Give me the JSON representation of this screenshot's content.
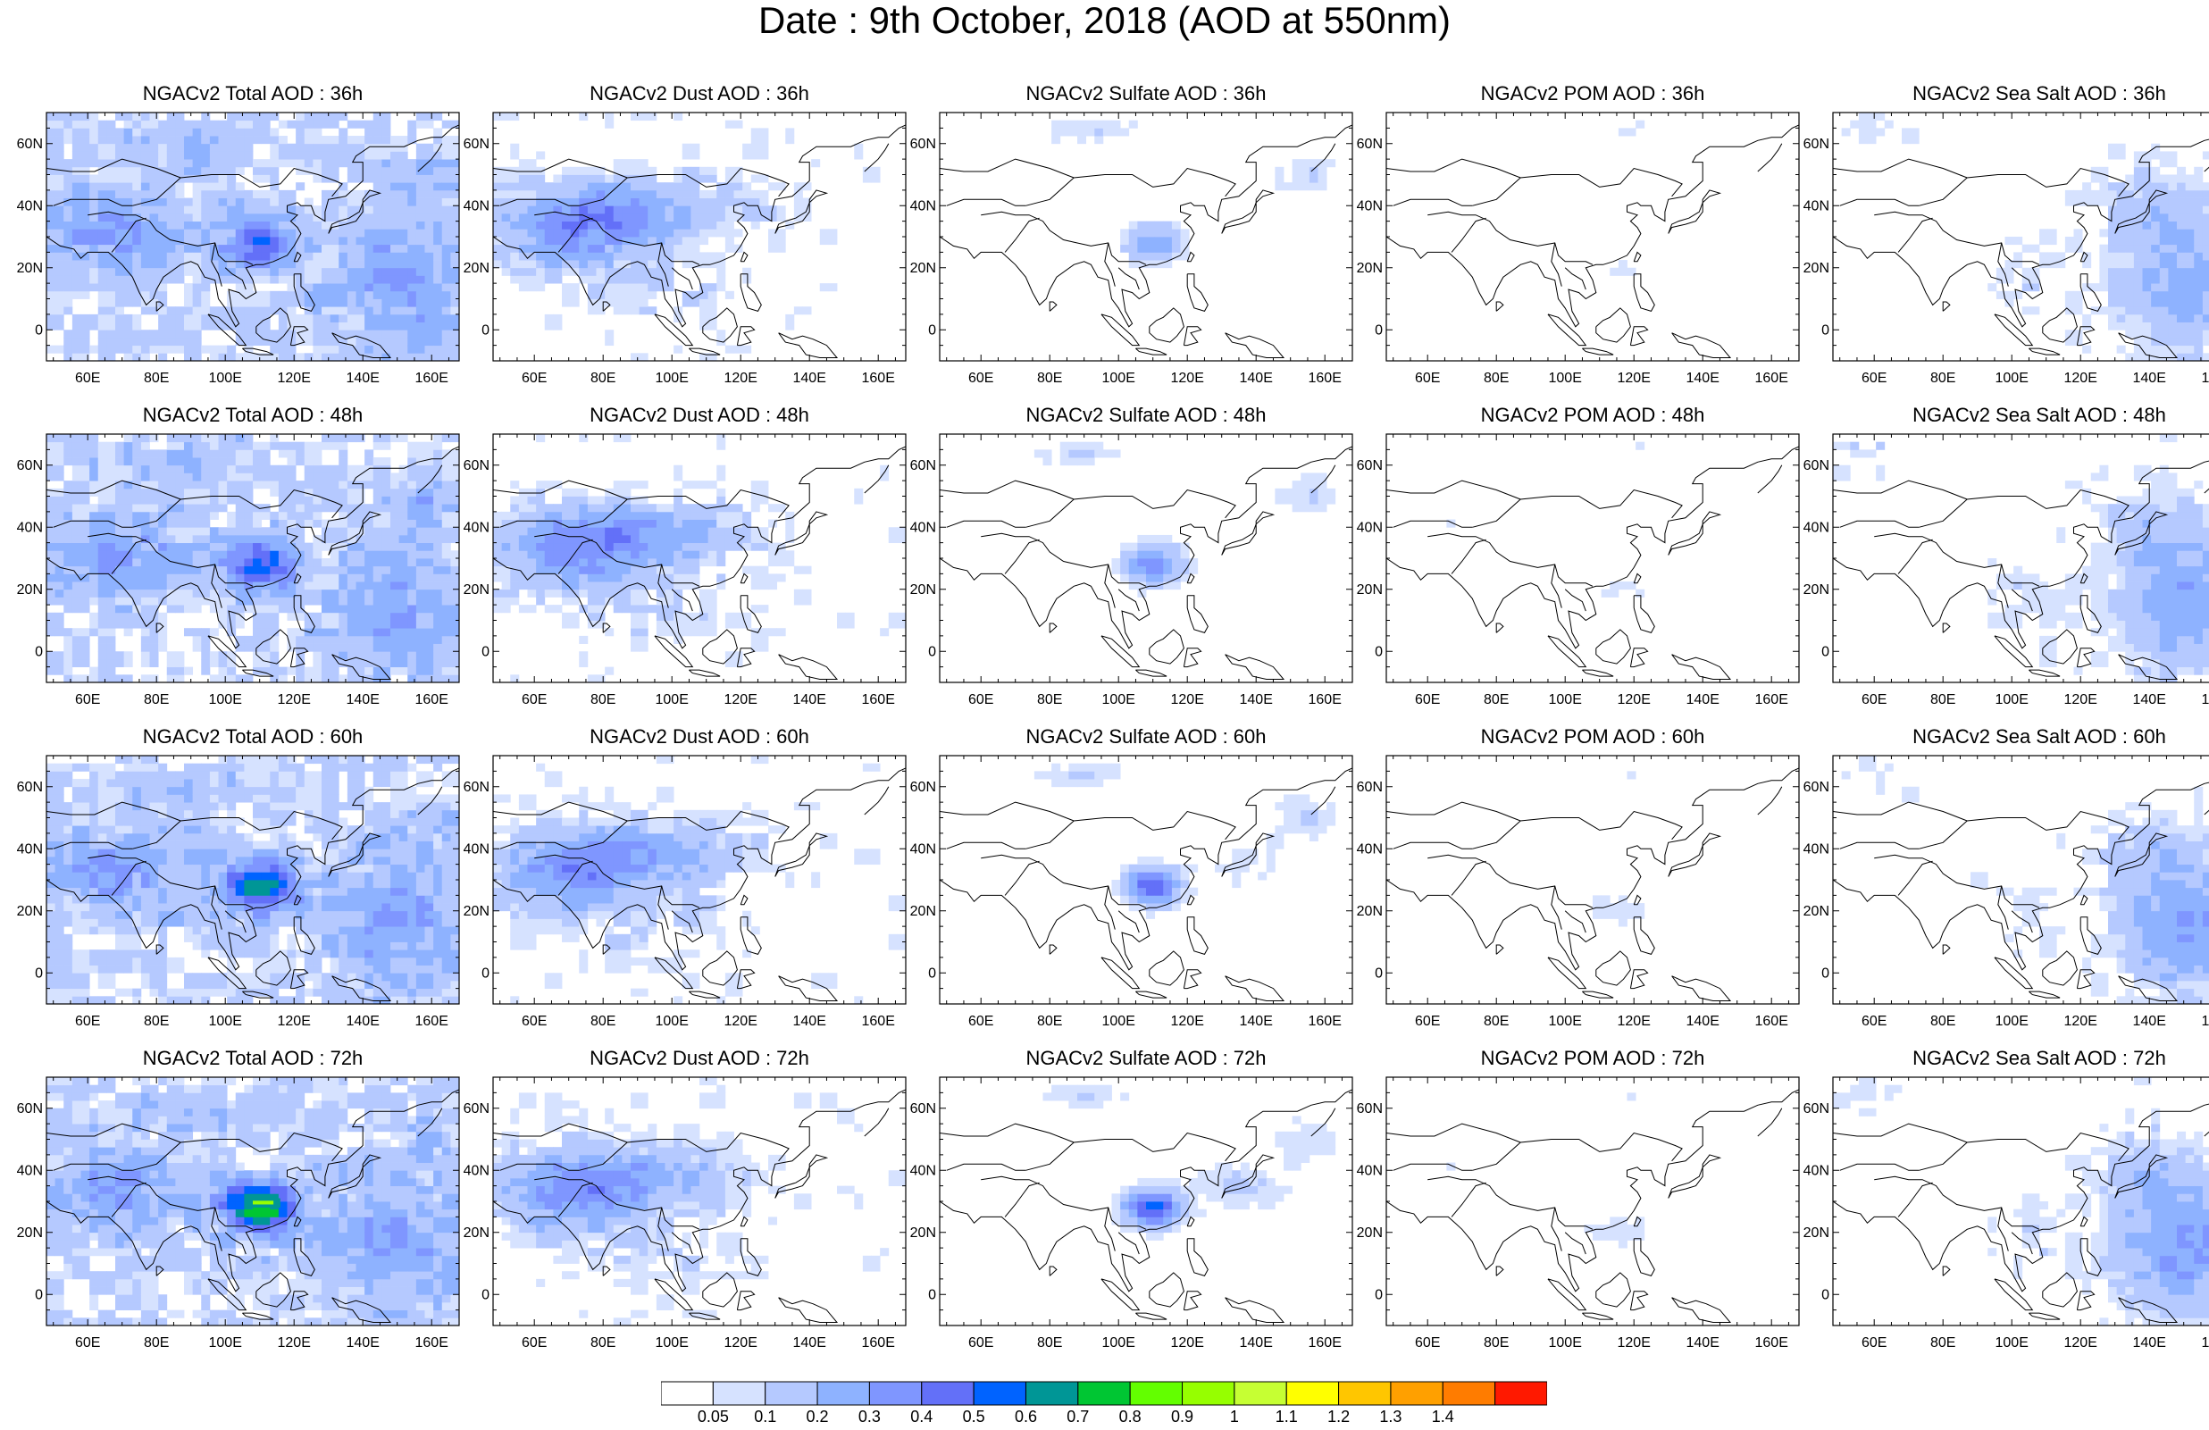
{
  "title": "Date : 9th October, 2018 (AOD at 550nm)",
  "x_ticks": [
    "60E",
    "80E",
    "100E",
    "120E",
    "140E",
    "160E"
  ],
  "x_tick_values": [
    60,
    80,
    100,
    120,
    140,
    160
  ],
  "y_ticks": [
    "60N",
    "40N",
    "20N",
    "0"
  ],
  "y_tick_values": [
    60,
    40,
    20,
    0
  ],
  "lon_range": [
    48,
    168
  ],
  "lat_range": [
    -10,
    70
  ],
  "colorbar": {
    "labels": [
      "0.05",
      "0.1",
      "0.2",
      "0.3",
      "0.4",
      "0.5",
      "0.6",
      "0.7",
      "0.8",
      "0.9",
      "1",
      "1.1",
      "1.2",
      "1.3",
      "1.4"
    ],
    "colors": [
      "#ffffff",
      "#d6e2ff",
      "#b5c9ff",
      "#8eb2ff",
      "#7f96ff",
      "#6370f8",
      "#0063ff",
      "#009696",
      "#00c633",
      "#63ff00",
      "#96ff00",
      "#c6ff33",
      "#ffff00",
      "#ffc600",
      "#ffa000",
      "#ff7c00",
      "#ff1900"
    ]
  },
  "species": [
    "Total",
    "Dust",
    "Sulfate",
    "POM",
    "Sea Salt"
  ],
  "forecast_hours": [
    "36h",
    "48h",
    "60h",
    "72h"
  ],
  "panels": [
    [
      "NGACv2 Total AOD : 36h",
      "NGACv2 Dust AOD : 36h",
      "NGACv2 Sulfate AOD : 36h",
      "NGACv2 POM AOD : 36h",
      "NGACv2 Sea Salt AOD : 36h"
    ],
    [
      "NGACv2 Total AOD : 48h",
      "NGACv2 Dust AOD : 48h",
      "NGACv2 Sulfate AOD : 48h",
      "NGACv2 POM AOD : 48h",
      "NGACv2 Sea Salt AOD : 48h"
    ],
    [
      "NGACv2 Total AOD : 60h",
      "NGACv2 Dust AOD : 60h",
      "NGACv2 Sulfate AOD : 60h",
      "NGACv2 POM AOD : 60h",
      "NGACv2 Sea Salt AOD : 60h"
    ],
    [
      "NGACv2 Total AOD : 72h",
      "NGACv2 Dust AOD : 72h",
      "NGACv2 Sulfate AOD : 72h",
      "NGACv2 POM AOD : 72h",
      "NGACv2 Sea Salt  AOD : 72h"
    ]
  ],
  "coastline_color": "#000000"
}
